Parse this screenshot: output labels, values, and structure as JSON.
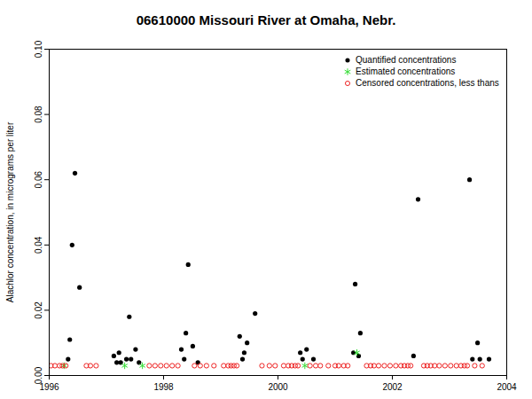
{
  "chart_data": {
    "type": "scatter",
    "title": "06610000 Missouri River at Omaha, Nebr.",
    "y_label": "Alachlor concentration, in micrograms per liter",
    "xlim": [
      1996,
      2004
    ],
    "xticks": [
      1996,
      1998,
      2000,
      2002,
      2004
    ],
    "ylim": [
      0,
      0.1
    ],
    "yticks": [
      {
        "value": 0,
        "label": "0.00"
      },
      {
        "value": 0.02,
        "label": "0.02"
      },
      {
        "value": 0.04,
        "label": "0.04"
      },
      {
        "value": 0.06,
        "label": "0.06"
      },
      {
        "value": 0.08,
        "label": "0.08"
      },
      {
        "value": 0.1,
        "label": "0.10"
      }
    ],
    "legend": "topright",
    "grid": false,
    "series": [
      {
        "name": "Quantified concentrations",
        "color": "#000000",
        "marker": "dot",
        "x": [
          1996.33,
          1996.36,
          1996.4,
          1996.45,
          1996.53,
          1997.13,
          1997.18,
          1997.22,
          1997.25,
          1997.35,
          1997.4,
          1997.43,
          1997.51,
          1997.57,
          1998.31,
          1998.36,
          1998.39,
          1998.43,
          1998.51,
          1998.6,
          1999.33,
          1999.38,
          1999.41,
          1999.46,
          1999.6,
          2000.39,
          2000.43,
          2000.5,
          2000.62,
          2001.32,
          2001.35,
          2001.41,
          2001.44,
          2002.37,
          2002.45,
          2003.35,
          2003.4,
          2003.49,
          2003.53,
          2003.69
        ],
        "values": [
          0.005,
          0.011,
          0.04,
          0.062,
          0.027,
          0.006,
          0.004,
          0.007,
          0.004,
          0.005,
          0.018,
          0.005,
          0.008,
          0.004,
          0.008,
          0.005,
          0.013,
          0.034,
          0.009,
          0.004,
          0.012,
          0.005,
          0.007,
          0.01,
          0.019,
          0.007,
          0.005,
          0.008,
          0.005,
          0.007,
          0.028,
          0.006,
          0.013,
          0.006,
          0.054,
          0.06,
          0.005,
          0.01,
          0.005,
          0.005
        ]
      },
      {
        "name": "Estimated concentrations",
        "color": "#33dd33",
        "marker": "asterisk",
        "x": [
          1996.26,
          1997.32,
          1997.63,
          2000.47,
          2001.38
        ],
        "values": [
          0.003,
          0.003,
          0.003,
          0.003,
          0.007
        ]
      },
      {
        "name": "Censored concentrations, less thans",
        "color": "#ee2222",
        "marker": "open circle",
        "x": [
          1996.03,
          1996.1,
          1996.18,
          1996.23,
          1996.29,
          1996.65,
          1996.72,
          1996.82,
          1997.75,
          1997.85,
          1997.95,
          1998.05,
          1998.15,
          1998.25,
          1998.54,
          1998.64,
          1998.75,
          1998.88,
          1999.05,
          1999.13,
          1999.18,
          1999.23,
          1999.28,
          1999.72,
          1999.85,
          1999.95,
          2000.1,
          2000.18,
          2000.24,
          2000.3,
          2000.35,
          2000.56,
          2000.66,
          2000.74,
          2000.88,
          2001.0,
          2001.06,
          2001.15,
          2001.22,
          2001.55,
          2001.62,
          2001.68,
          2001.76,
          2001.86,
          2001.96,
          2002.06,
          2002.15,
          2002.21,
          2002.27,
          2002.32,
          2002.55,
          2002.61,
          2002.67,
          2002.74,
          2002.82,
          2002.92,
          2003.02,
          2003.12,
          2003.2,
          2003.26,
          2003.31,
          2003.44,
          2003.57
        ],
        "values": [
          0.003,
          0.003,
          0.003,
          0.003,
          0.003,
          0.003,
          0.003,
          0.003,
          0.003,
          0.003,
          0.003,
          0.003,
          0.003,
          0.003,
          0.003,
          0.003,
          0.003,
          0.003,
          0.003,
          0.003,
          0.003,
          0.003,
          0.003,
          0.003,
          0.003,
          0.003,
          0.003,
          0.003,
          0.003,
          0.003,
          0.003,
          0.003,
          0.003,
          0.003,
          0.003,
          0.003,
          0.003,
          0.003,
          0.003,
          0.003,
          0.003,
          0.003,
          0.003,
          0.003,
          0.003,
          0.003,
          0.003,
          0.003,
          0.003,
          0.003,
          0.003,
          0.003,
          0.003,
          0.003,
          0.003,
          0.003,
          0.003,
          0.003,
          0.003,
          0.003,
          0.003,
          0.003,
          0.003
        ]
      }
    ]
  }
}
